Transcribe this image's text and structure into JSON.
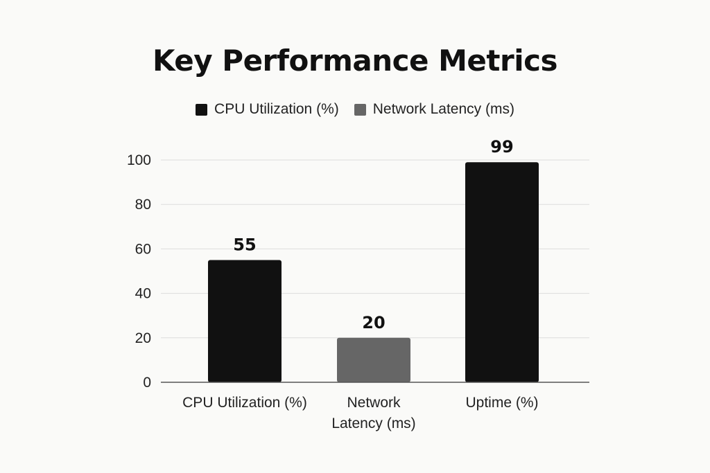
{
  "chart_data": {
    "type": "bar",
    "title": "Key Performance Metrics",
    "categories": [
      "CPU Utilization (%)",
      "Network Latency (ms)",
      "Uptime (%)"
    ],
    "category_label_lines": [
      [
        "CPU Utilization (%)"
      ],
      [
        "Network",
        "Latency (ms)"
      ],
      [
        "Uptime (%)"
      ]
    ],
    "values": [
      55,
      20,
      99
    ],
    "data_labels": [
      "55",
      "20",
      "99"
    ],
    "bar_colors": [
      "#111111",
      "#666666",
      "#111111"
    ],
    "legend": [
      {
        "label": "CPU Utilization (%)",
        "color": "#111111"
      },
      {
        "label": "Network Latency (ms)",
        "color": "#666666"
      }
    ],
    "legend_position": "top-center",
    "ylim": [
      0,
      100
    ],
    "yticks": [
      0,
      20,
      40,
      60,
      80,
      100
    ],
    "xlabel": "",
    "ylabel": "",
    "grid": true
  }
}
